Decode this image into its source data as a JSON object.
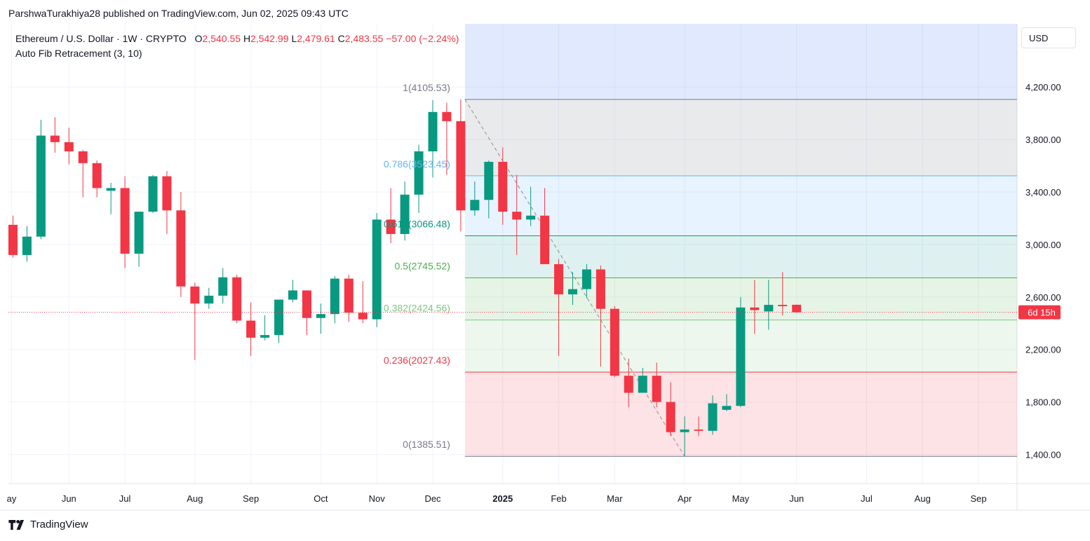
{
  "header": {
    "publisher": "ParshwaTurakhiya28 published on TradingView.com, Jun 02, 2025 09:43 UTC"
  },
  "legend": {
    "symbol": "Ethereum / U.S. Dollar · 1W · CRYPTO",
    "open_label": "O",
    "open": "2,540.55",
    "high_label": "H",
    "high": "2,542.99",
    "low_label": "L",
    "low": "2,479.61",
    "close_label": "C",
    "close": "2,483.55",
    "change": "−57.00 (−2.24%)",
    "indicator": "Auto Fib Retracement (3, 10)"
  },
  "currency": "USD",
  "countdown": "6d 15h",
  "brand": "TradingView",
  "colors": {
    "up": "#089981",
    "down": "#f23645",
    "fib_1": "#787b86",
    "fib_0786": "#64b5f6",
    "fib_0618": "#089981",
    "fib_05": "#4caf50",
    "fib_0382": "#81c784",
    "fib_0236": "#f23645",
    "fib_0": "#787b86"
  },
  "chart_data": {
    "type": "candlestick",
    "ylim": [
      1150,
      4700
    ],
    "y_ticks": [
      {
        "value": 1400,
        "label": "1,400.00"
      },
      {
        "value": 1800,
        "label": "1,800.00"
      },
      {
        "value": 2200,
        "label": "2,200.00"
      },
      {
        "value": 2600,
        "label": "2,600.00"
      },
      {
        "value": 3000,
        "label": "3,000.00"
      },
      {
        "value": 3400,
        "label": "3,400.00"
      },
      {
        "value": 3800,
        "label": "3,800.00"
      },
      {
        "value": 4200,
        "label": "4,200.00"
      }
    ],
    "x_ticks": [
      {
        "index": -0.1,
        "label": "ay",
        "bold": false
      },
      {
        "index": 4,
        "label": "Jun",
        "bold": false
      },
      {
        "index": 8,
        "label": "Jul",
        "bold": false
      },
      {
        "index": 13,
        "label": "Aug",
        "bold": false
      },
      {
        "index": 17,
        "label": "Sep",
        "bold": false
      },
      {
        "index": 22,
        "label": "Oct",
        "bold": false
      },
      {
        "index": 26,
        "label": "Nov",
        "bold": false
      },
      {
        "index": 30,
        "label": "Dec",
        "bold": false
      },
      {
        "index": 35,
        "label": "2025",
        "bold": true
      },
      {
        "index": 39,
        "label": "Feb",
        "bold": false
      },
      {
        "index": 43,
        "label": "Mar",
        "bold": false
      },
      {
        "index": 48,
        "label": "Apr",
        "bold": false
      },
      {
        "index": 52,
        "label": "May",
        "bold": false
      },
      {
        "index": 56,
        "label": "Jun",
        "bold": false
      },
      {
        "index": 61,
        "label": "Jul",
        "bold": false
      },
      {
        "index": 65,
        "label": "Aug",
        "bold": false
      },
      {
        "index": 69,
        "label": "Sep",
        "bold": false
      }
    ],
    "candles": [
      {
        "o": 3150,
        "h": 3220,
        "l": 2900,
        "c": 2920
      },
      {
        "o": 2920,
        "h": 3140,
        "l": 2870,
        "c": 3060
      },
      {
        "o": 3060,
        "h": 3950,
        "l": 3040,
        "c": 3830
      },
      {
        "o": 3830,
        "h": 3970,
        "l": 3700,
        "c": 3780
      },
      {
        "o": 3780,
        "h": 3890,
        "l": 3610,
        "c": 3710
      },
      {
        "o": 3710,
        "h": 3720,
        "l": 3360,
        "c": 3620
      },
      {
        "o": 3620,
        "h": 3640,
        "l": 3360,
        "c": 3430
      },
      {
        "o": 3410,
        "h": 3470,
        "l": 3230,
        "c": 3430
      },
      {
        "o": 3430,
        "h": 3520,
        "l": 2820,
        "c": 2930
      },
      {
        "o": 2930,
        "h": 3250,
        "l": 2830,
        "c": 3250
      },
      {
        "o": 3250,
        "h": 3530,
        "l": 3240,
        "c": 3520
      },
      {
        "o": 3520,
        "h": 3560,
        "l": 3080,
        "c": 3260
      },
      {
        "o": 3260,
        "h": 3400,
        "l": 2600,
        "c": 2680
      },
      {
        "o": 2680,
        "h": 2710,
        "l": 2120,
        "c": 2550
      },
      {
        "o": 2550,
        "h": 2670,
        "l": 2510,
        "c": 2610
      },
      {
        "o": 2610,
        "h": 2820,
        "l": 2550,
        "c": 2750
      },
      {
        "o": 2750,
        "h": 2770,
        "l": 2400,
        "c": 2420
      },
      {
        "o": 2420,
        "h": 2560,
        "l": 2150,
        "c": 2290
      },
      {
        "o": 2290,
        "h": 2460,
        "l": 2270,
        "c": 2310
      },
      {
        "o": 2310,
        "h": 2550,
        "l": 2250,
        "c": 2580
      },
      {
        "o": 2580,
        "h": 2730,
        "l": 2560,
        "c": 2650
      },
      {
        "o": 2650,
        "h": 2650,
        "l": 2310,
        "c": 2440
      },
      {
        "o": 2440,
        "h": 2550,
        "l": 2320,
        "c": 2470
      },
      {
        "o": 2470,
        "h": 2760,
        "l": 2400,
        "c": 2740
      },
      {
        "o": 2740,
        "h": 2770,
        "l": 2410,
        "c": 2480
      },
      {
        "o": 2480,
        "h": 2720,
        "l": 2400,
        "c": 2430
      },
      {
        "o": 2430,
        "h": 3240,
        "l": 2370,
        "c": 3190
      },
      {
        "o": 3190,
        "h": 3430,
        "l": 3010,
        "c": 3080
      },
      {
        "o": 3080,
        "h": 3480,
        "l": 3030,
        "c": 3380
      },
      {
        "o": 3380,
        "h": 3760,
        "l": 3240,
        "c": 3710
      },
      {
        "o": 3710,
        "h": 4100,
        "l": 3510,
        "c": 4010
      },
      {
        "o": 4010,
        "h": 4080,
        "l": 3530,
        "c": 3940
      },
      {
        "o": 3940,
        "h": 4107,
        "l": 3100,
        "c": 3260
      },
      {
        "o": 3260,
        "h": 3480,
        "l": 3220,
        "c": 3340
      },
      {
        "o": 3340,
        "h": 3640,
        "l": 3200,
        "c": 3630
      },
      {
        "o": 3630,
        "h": 3740,
        "l": 3150,
        "c": 3250
      },
      {
        "o": 3250,
        "h": 3530,
        "l": 2920,
        "c": 3190
      },
      {
        "o": 3190,
        "h": 3440,
        "l": 3140,
        "c": 3220
      },
      {
        "o": 3220,
        "h": 3430,
        "l": 2860,
        "c": 2850
      },
      {
        "o": 2850,
        "h": 2890,
        "l": 2150,
        "c": 2620
      },
      {
        "o": 2620,
        "h": 2790,
        "l": 2540,
        "c": 2660
      },
      {
        "o": 2660,
        "h": 2850,
        "l": 2590,
        "c": 2810
      },
      {
        "o": 2810,
        "h": 2840,
        "l": 2070,
        "c": 2510
      },
      {
        "o": 2510,
        "h": 2530,
        "l": 1990,
        "c": 2000
      },
      {
        "o": 2000,
        "h": 2130,
        "l": 1760,
        "c": 1870
      },
      {
        "o": 1870,
        "h": 2060,
        "l": 1870,
        "c": 2000
      },
      {
        "o": 2000,
        "h": 2100,
        "l": 1760,
        "c": 1800
      },
      {
        "o": 1800,
        "h": 1950,
        "l": 1540,
        "c": 1570
      },
      {
        "o": 1570,
        "h": 1690,
        "l": 1386,
        "c": 1590
      },
      {
        "o": 1590,
        "h": 1690,
        "l": 1540,
        "c": 1580
      },
      {
        "o": 1580,
        "h": 1850,
        "l": 1550,
        "c": 1790
      },
      {
        "o": 1740,
        "h": 1860,
        "l": 1730,
        "c": 1770
      },
      {
        "o": 1770,
        "h": 2600,
        "l": 1760,
        "c": 2520
      },
      {
        "o": 2520,
        "h": 2730,
        "l": 2320,
        "c": 2500
      },
      {
        "o": 2490,
        "h": 2730,
        "l": 2350,
        "c": 2540
      },
      {
        "o": 2540,
        "h": 2790,
        "l": 2460,
        "c": 2530
      },
      {
        "o": 2540.55,
        "h": 2542.99,
        "l": 2479.61,
        "c": 2483.55
      }
    ],
    "last_price": 2483.55,
    "fib_levels": [
      {
        "ratio": 1,
        "price": 4105.53,
        "label": "1(4105.53)",
        "color_key": "fib_1"
      },
      {
        "ratio": 0.786,
        "price": 3523.45,
        "label": "0.786(3523.45)",
        "color_key": "fib_0786"
      },
      {
        "ratio": 0.618,
        "price": 3066.48,
        "label": "0.618(3066.48)",
        "color_key": "fib_0618"
      },
      {
        "ratio": 0.5,
        "price": 2745.52,
        "label": "0.5(2745.52)",
        "color_key": "fib_05"
      },
      {
        "ratio": 0.382,
        "price": 2424.56,
        "label": "0.382(2424.56)",
        "color_key": "fib_0382"
      },
      {
        "ratio": 0.236,
        "price": 2027.43,
        "label": "0.236(2027.43)",
        "color_key": "fib_0236"
      },
      {
        "ratio": 0,
        "price": 1385.51,
        "label": "0(1385.51)",
        "color_key": "fib_0"
      }
    ],
    "fib_start_index": 32,
    "fib_end_index": 48
  }
}
